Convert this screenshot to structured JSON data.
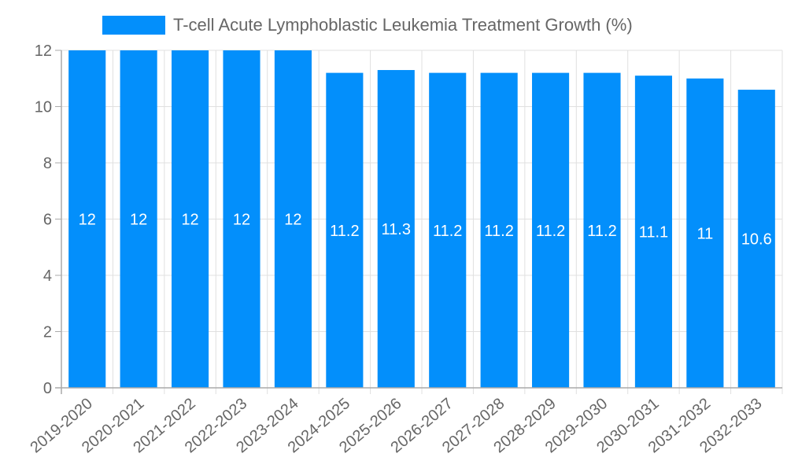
{
  "chart_data": {
    "type": "bar",
    "title": "",
    "legend": [
      "T-cell Acute Lymphoblastic Leukemia Treatment Growth (%)"
    ],
    "legend_position": "top",
    "categories": [
      "2019-2020",
      "2020-2021",
      "2021-2022",
      "2022-2023",
      "2023-2024",
      "2024-2025",
      "2025-2026",
      "2026-2027",
      "2027-2028",
      "2028-2029",
      "2029-2030",
      "2030-2031",
      "2031-2032",
      "2032-2033"
    ],
    "series": [
      {
        "name": "T-cell Acute Lymphoblastic Leukemia Treatment Growth (%)",
        "values": [
          12,
          12,
          12,
          12,
          12,
          11.2,
          11.3,
          11.2,
          11.2,
          11.2,
          11.2,
          11.1,
          11,
          10.6
        ],
        "color": "#038ffb"
      }
    ],
    "data_labels": [
      "12",
      "12",
      "12",
      "12",
      "12",
      "11.2",
      "11.3",
      "11.2",
      "11.2",
      "11.2",
      "11.2",
      "11.1",
      "11",
      "10.6"
    ],
    "xlabel": "",
    "ylabel": "",
    "ylim": [
      0,
      12
    ],
    "yticks": [
      0,
      2,
      4,
      6,
      8,
      10,
      12
    ],
    "grid": true
  }
}
